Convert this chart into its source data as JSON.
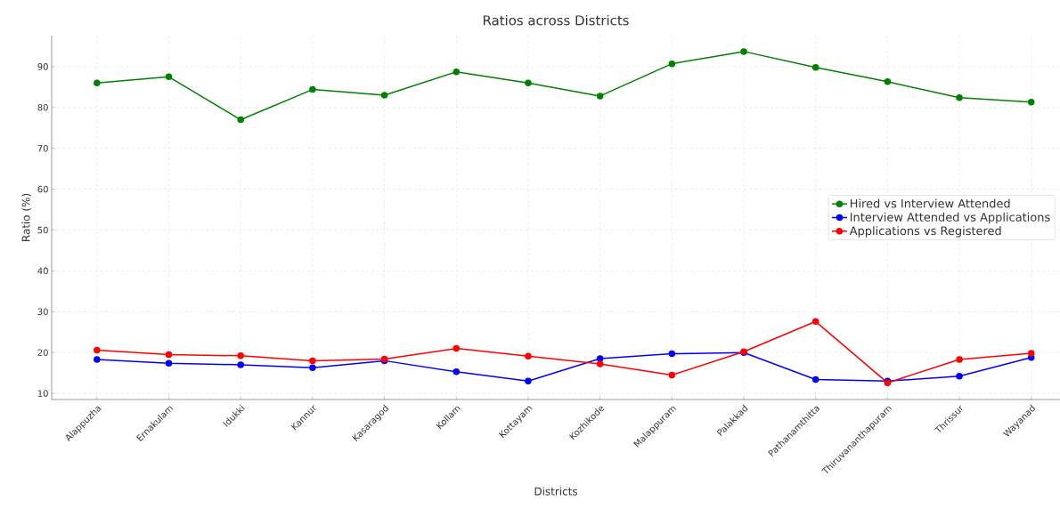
{
  "chart_data": {
    "type": "line",
    "title": "Ratios across Districts",
    "xlabel": "Districts",
    "ylabel": "Ratio (%)",
    "categories": [
      "Alappuzha",
      "Ernakulam",
      "Idukki",
      "Kannur",
      "Kasaragod",
      "Kollam",
      "Kottayam",
      "Kozhikode",
      "Malappuram",
      "Palakkad",
      "Pathanamthitta",
      "Thiruvananthapuram",
      "Thrissur",
      "Wayanad"
    ],
    "series": [
      {
        "name": "Hired vs Interview Attended",
        "color": "#008000",
        "values": [
          86,
          87.5,
          77,
          84.4,
          83,
          88.7,
          86,
          82.8,
          90.7,
          93.7,
          89.8,
          86.3,
          82.4,
          81.3
        ]
      },
      {
        "name": "Interview Attended vs Applications",
        "color": "#0000ff",
        "values": [
          18.3,
          17.4,
          17,
          16.3,
          18,
          15.3,
          13,
          18.5,
          19.7,
          20,
          13.4,
          13,
          14.2,
          18.8
        ]
      },
      {
        "name": "Applications vs Registered",
        "color": "#ff0000",
        "values": [
          20.6,
          19.5,
          19.2,
          18,
          18.4,
          21,
          19.1,
          17.2,
          14.5,
          20.2,
          27.6,
          12.6,
          18.3,
          19.8
        ]
      }
    ],
    "ylim": [
      8.5,
      97.6
    ],
    "yticks": [
      10,
      20,
      30,
      40,
      50,
      60,
      70,
      80,
      90
    ],
    "grid": true,
    "legend": "right",
    "marker": "circle",
    "line_style": "solid"
  }
}
